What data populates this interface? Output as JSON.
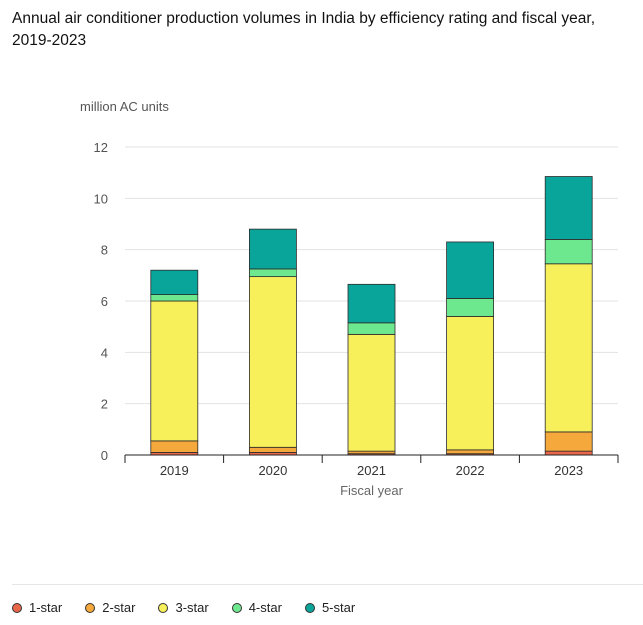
{
  "chart_data": {
    "type": "bar",
    "stacked": true,
    "title": "Annual air conditioner production volumes in India by efficiency rating and fiscal year, 2019-2023",
    "ylabel": "million AC units",
    "xlabel": "Fiscal year",
    "ylim": [
      0,
      12
    ],
    "yticks": [
      0,
      2,
      4,
      6,
      8,
      10,
      12
    ],
    "grid": true,
    "legend_position": "bottom",
    "categories": [
      "2019",
      "2020",
      "2021",
      "2022",
      "2023"
    ],
    "series": [
      {
        "name": "1-star",
        "color": "#e8674a",
        "values": [
          0.1,
          0.1,
          0.05,
          0.05,
          0.15
        ]
      },
      {
        "name": "2-star",
        "color": "#f5a83c",
        "values": [
          0.45,
          0.2,
          0.1,
          0.15,
          0.75
        ]
      },
      {
        "name": "3-star",
        "color": "#f8f05a",
        "values": [
          5.45,
          6.65,
          4.55,
          5.2,
          6.55
        ]
      },
      {
        "name": "4-star",
        "color": "#6ee88e",
        "values": [
          0.25,
          0.3,
          0.45,
          0.7,
          0.95
        ]
      },
      {
        "name": "5-star",
        "color": "#0aa59a",
        "values": [
          0.95,
          1.55,
          1.5,
          2.2,
          2.45
        ]
      }
    ]
  }
}
